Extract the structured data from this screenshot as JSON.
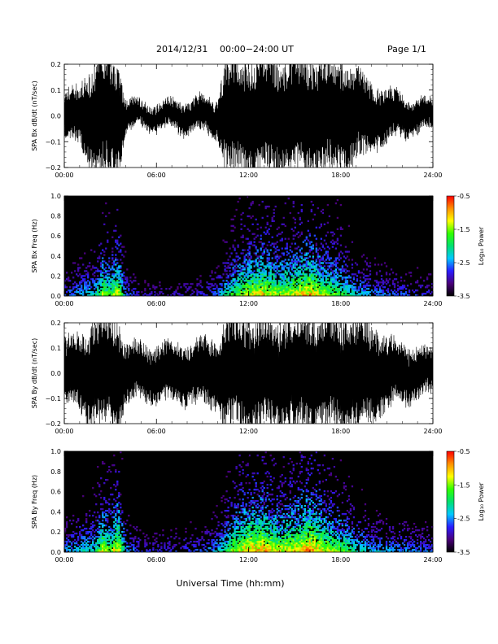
{
  "header": {
    "date": "2014/12/31",
    "range": "00:00−24:00 UT",
    "page": "Page 1/1"
  },
  "xlabel": "Universal Time (hh:mm)",
  "colorbar": {
    "label": "Log₁₀ Power",
    "ticks": [
      "-0.5",
      "-1.5",
      "-2.5",
      "-3.5"
    ],
    "range": [
      -3.5,
      -0.5
    ],
    "colormap": [
      "#000000",
      "#4a007a",
      "#2a1cff",
      "#00c8ff",
      "#00e070",
      "#30ff00",
      "#ffff00",
      "#ff9000",
      "#ff0000"
    ]
  },
  "chart_data": [
    {
      "type": "line",
      "ylabel": "SPA Bx dB/dt (nT/sec)",
      "xticks": [
        "00:00",
        "06:00",
        "12:00",
        "18:00",
        "24:00"
      ],
      "yticks": [
        "0.2",
        "0.1",
        "0.0",
        "−0.1",
        "−0.2"
      ],
      "xlim": [
        0,
        24
      ],
      "ylim": [
        -0.2,
        0.2
      ],
      "color": "#000000",
      "series": [
        {
          "x": [
            0,
            1,
            2,
            3,
            3.5,
            4,
            5,
            6,
            7,
            8,
            9,
            10,
            10.5,
            11,
            12,
            13,
            14,
            15,
            16,
            17,
            18,
            19,
            20,
            21,
            22,
            23,
            24
          ],
          "amplitude": [
            0.08,
            0.1,
            0.2,
            0.2,
            0.2,
            0.06,
            0.04,
            0.045,
            0.05,
            0.055,
            0.06,
            0.07,
            0.2,
            0.2,
            0.2,
            0.2,
            0.2,
            0.2,
            0.2,
            0.2,
            0.2,
            0.16,
            0.13,
            0.09,
            0.07,
            0.06,
            0.05
          ]
        }
      ]
    },
    {
      "type": "heatmap",
      "ylabel": "SPA Bx Freq (Hz)",
      "xticks": [
        "00:00",
        "06:00",
        "12:00",
        "18:00",
        "24:00"
      ],
      "yticks": [
        "1.0",
        "0.8",
        "0.6",
        "0.4",
        "0.2",
        "0.0"
      ],
      "xlim": [
        0,
        24
      ],
      "ylim": [
        0,
        1
      ],
      "zlim": [
        -3.5,
        -0.5
      ],
      "activity_x": [
        0,
        2,
        2.5,
        3,
        3.5,
        4,
        5,
        7,
        9,
        10,
        11,
        12,
        13,
        14,
        15,
        16,
        17,
        18,
        19,
        20,
        22,
        24
      ],
      "activity_level": [
        0.3,
        0.45,
        0.7,
        0.6,
        0.8,
        0.35,
        0.2,
        0.2,
        0.25,
        0.35,
        0.6,
        0.75,
        0.8,
        0.7,
        0.75,
        0.85,
        0.7,
        0.6,
        0.45,
        0.35,
        0.3,
        0.25
      ]
    },
    {
      "type": "line",
      "ylabel": "SPA By dB/dt (nT/sec)",
      "xticks": [
        "00:00",
        "06:00",
        "12:00",
        "18:00",
        "24:00"
      ],
      "yticks": [
        "0.2",
        "0.1",
        "0.0",
        "−0.1",
        "−0.2"
      ],
      "xlim": [
        0,
        24
      ],
      "ylim": [
        -0.2,
        0.2
      ],
      "color": "#000000",
      "series": [
        {
          "x": [
            0,
            1,
            2,
            3,
            3.5,
            4,
            5,
            6,
            7,
            8,
            9,
            10,
            10.5,
            11,
            12,
            13,
            14,
            15,
            16,
            17,
            18,
            19,
            20,
            21,
            22,
            23,
            24
          ],
          "amplitude": [
            0.12,
            0.14,
            0.2,
            0.2,
            0.2,
            0.11,
            0.1,
            0.1,
            0.1,
            0.11,
            0.12,
            0.13,
            0.2,
            0.2,
            0.2,
            0.2,
            0.2,
            0.2,
            0.2,
            0.2,
            0.2,
            0.2,
            0.17,
            0.13,
            0.11,
            0.09,
            0.08
          ]
        }
      ]
    },
    {
      "type": "heatmap",
      "ylabel": "SPA By Freq (Hz)",
      "xticks": [
        "00:00",
        "06:00",
        "12:00",
        "18:00",
        "24:00"
      ],
      "yticks": [
        "1.0",
        "0.8",
        "0.6",
        "0.4",
        "0.2",
        "0.0"
      ],
      "xlim": [
        0,
        24
      ],
      "ylim": [
        0,
        1
      ],
      "zlim": [
        -3.5,
        -0.5
      ],
      "activity_x": [
        0,
        2,
        2.5,
        3,
        3.5,
        4,
        5,
        7,
        9,
        10,
        11,
        12,
        13,
        14,
        15,
        16,
        17,
        18,
        19,
        20,
        22,
        24
      ],
      "activity_level": [
        0.35,
        0.5,
        0.75,
        0.65,
        0.85,
        0.4,
        0.25,
        0.25,
        0.3,
        0.4,
        0.7,
        0.85,
        0.85,
        0.75,
        0.8,
        0.9,
        0.75,
        0.65,
        0.5,
        0.4,
        0.35,
        0.3
      ]
    }
  ]
}
